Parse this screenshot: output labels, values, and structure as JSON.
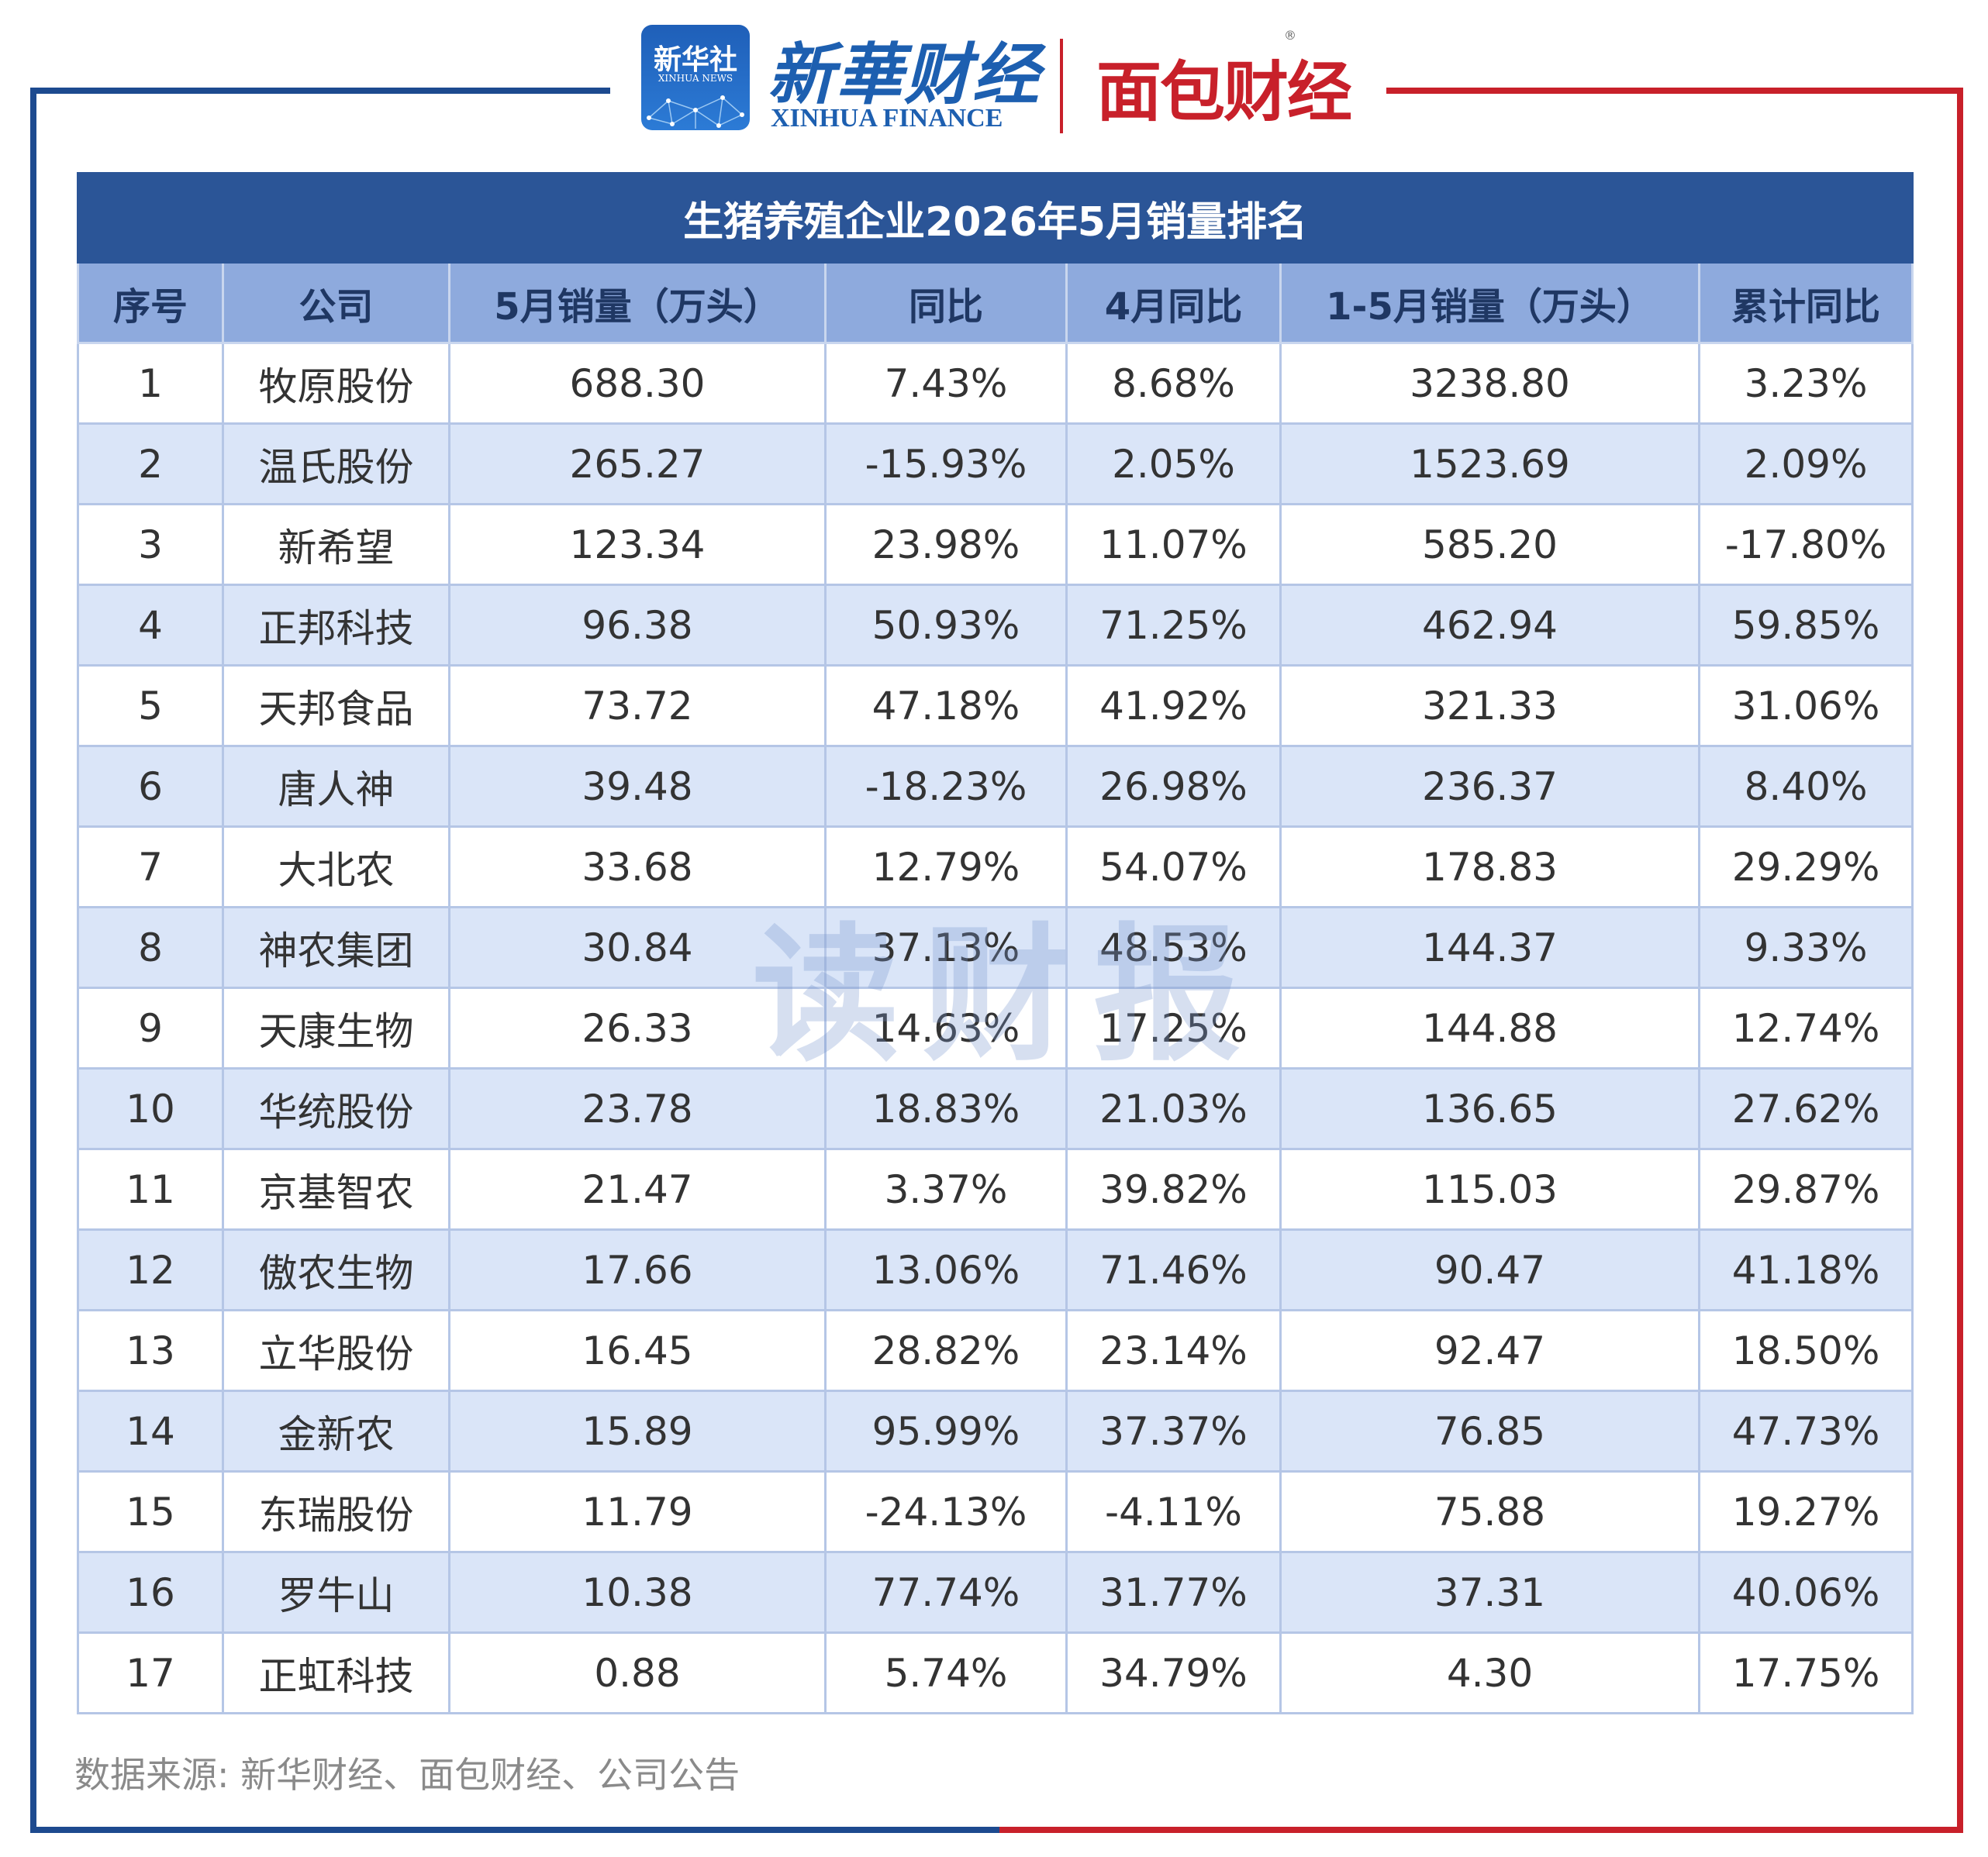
{
  "header": {
    "xinhuashe_logo": {
      "cn": "新华社",
      "en": "XINHUA NEWS"
    },
    "xinhua_finance_logo": {
      "cn": "新華财经",
      "en": "XINHUA FINANCE"
    },
    "mianbao_logo": {
      "cn": "面包财经",
      "mark": "®"
    }
  },
  "colors": {
    "brand_blue": "#1d4a8f",
    "brand_red": "#c8202a",
    "title_bg": "#2b5597",
    "header_bg": "#8eaadd",
    "row_alt_bg": "#dae5f8"
  },
  "table": {
    "title": "生猪养殖企业2026年5月销量排名",
    "columns": [
      "序号",
      "公司",
      "5月销量（万头）",
      "同比",
      "4月同比",
      "1-5月销量（万头）",
      "累计同比"
    ],
    "rows": [
      [
        "1",
        "牧原股份",
        "688.30",
        "7.43%",
        "8.68%",
        "3238.80",
        "3.23%"
      ],
      [
        "2",
        "温氏股份",
        "265.27",
        "-15.93%",
        "2.05%",
        "1523.69",
        "2.09%"
      ],
      [
        "3",
        "新希望",
        "123.34",
        "23.98%",
        "11.07%",
        "585.20",
        "-17.80%"
      ],
      [
        "4",
        "正邦科技",
        "96.38",
        "50.93%",
        "71.25%",
        "462.94",
        "59.85%"
      ],
      [
        "5",
        "天邦食品",
        "73.72",
        "47.18%",
        "41.92%",
        "321.33",
        "31.06%"
      ],
      [
        "6",
        "唐人神",
        "39.48",
        "-18.23%",
        "26.98%",
        "236.37",
        "8.40%"
      ],
      [
        "7",
        "大北农",
        "33.68",
        "12.79%",
        "54.07%",
        "178.83",
        "29.29%"
      ],
      [
        "8",
        "神农集团",
        "30.84",
        "37.13%",
        "48.53%",
        "144.37",
        "9.33%"
      ],
      [
        "9",
        "天康生物",
        "26.33",
        "14.63%",
        "17.25%",
        "144.88",
        "12.74%"
      ],
      [
        "10",
        "华统股份",
        "23.78",
        "18.83%",
        "21.03%",
        "136.65",
        "27.62%"
      ],
      [
        "11",
        "京基智农",
        "21.47",
        "3.37%",
        "39.82%",
        "115.03",
        "29.87%"
      ],
      [
        "12",
        "傲农生物",
        "17.66",
        "13.06%",
        "71.46%",
        "90.47",
        "41.18%"
      ],
      [
        "13",
        "立华股份",
        "16.45",
        "28.82%",
        "23.14%",
        "92.47",
        "18.50%"
      ],
      [
        "14",
        "金新农",
        "15.89",
        "95.99%",
        "37.37%",
        "76.85",
        "47.73%"
      ],
      [
        "15",
        "东瑞股份",
        "11.79",
        "-24.13%",
        "-4.11%",
        "75.88",
        "19.27%"
      ],
      [
        "16",
        "罗牛山",
        "10.38",
        "77.74%",
        "31.77%",
        "37.31",
        "40.06%"
      ],
      [
        "17",
        "正虹科技",
        "0.88",
        "5.74%",
        "34.79%",
        "4.30",
        "17.75%"
      ]
    ]
  },
  "watermark": "读财报",
  "source": "数据来源: 新华财经、面包财经、公司公告"
}
